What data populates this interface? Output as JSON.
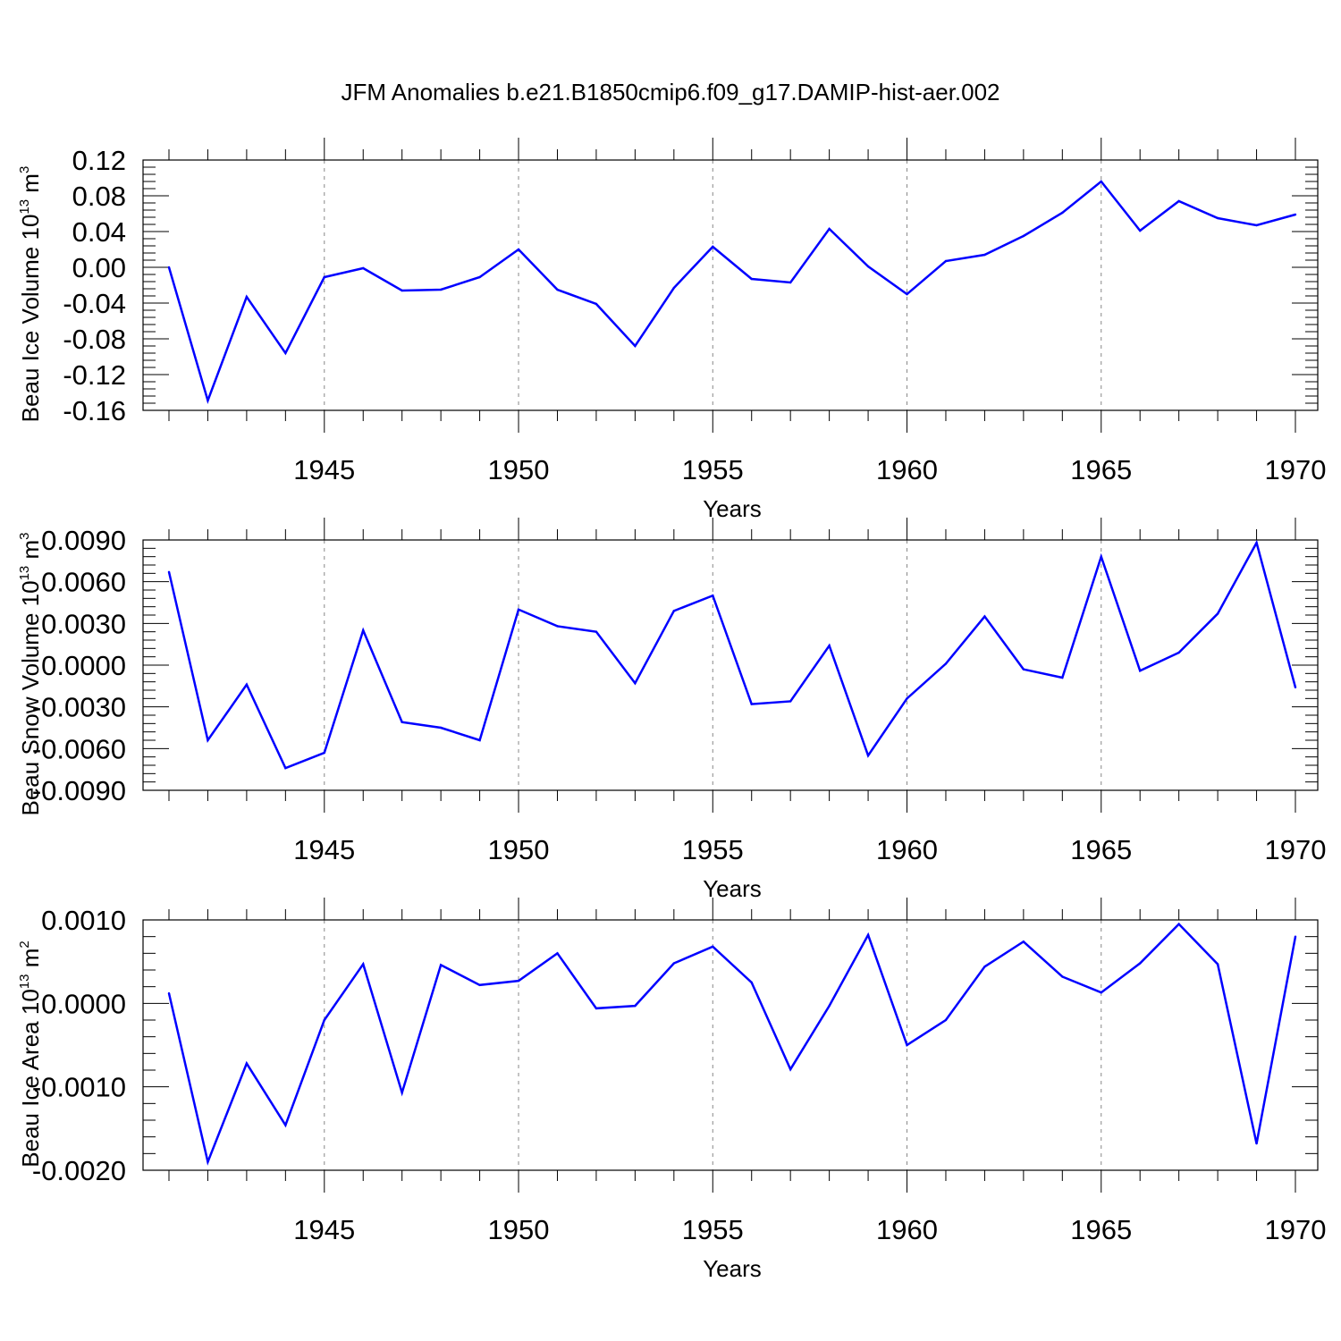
{
  "title": "JFM Anomalies b.e21.B1850cmip6.f09_g17.DAMIP-hist-aer.002",
  "colors": {
    "line": "#0000ff",
    "axis": "#000000",
    "grid": "#888888"
  },
  "chart_data": [
    {
      "type": "line",
      "title": "JFM Anomalies b.e21.B1850cmip6.f09_g17.DAMIP-hist-aer.002",
      "xlabel": "Years",
      "ylabel": "Beau Ice Volume 10",
      "ylabel_exp": "13",
      "ylabel_unit": " m",
      "ylabel_unit_exp": "3",
      "xlim": [
        1941,
        1970
      ],
      "ylim": [
        -0.16,
        0.12
      ],
      "yticks": [
        0.12,
        0.08,
        0.04,
        0.0,
        -0.04,
        -0.08,
        -0.12,
        -0.16
      ],
      "ytick_labels": [
        "0.12",
        "0.08",
        "0.04",
        "0.00",
        "-0.04",
        "-0.08",
        "-0.12",
        "-0.16"
      ],
      "xticks": [
        1945,
        1950,
        1955,
        1960,
        1965,
        1970
      ],
      "xtick_labels": [
        "1945",
        "1950",
        "1955",
        "1960",
        "1965",
        "1970"
      ],
      "x": [
        1941,
        1942,
        1943,
        1944,
        1945,
        1946,
        1947,
        1948,
        1949,
        1950,
        1951,
        1952,
        1953,
        1954,
        1955,
        1956,
        1957,
        1958,
        1959,
        1960,
        1961,
        1962,
        1963,
        1964,
        1965,
        1966,
        1967,
        1968,
        1969,
        1970
      ],
      "values": [
        0.0,
        -0.149,
        -0.033,
        -0.096,
        -0.011,
        -0.001,
        -0.026,
        -0.025,
        -0.011,
        0.02,
        -0.025,
        -0.041,
        -0.088,
        -0.023,
        0.023,
        -0.013,
        -0.017,
        0.043,
        0.001,
        -0.03,
        0.007,
        0.014,
        0.035,
        0.061,
        0.096,
        0.041,
        0.074,
        0.055,
        0.047,
        0.059
      ]
    },
    {
      "type": "line",
      "xlabel": "Years",
      "ylabel": "Beau Snow Volume 10",
      "ylabel_exp": "13",
      "ylabel_unit": " m",
      "ylabel_unit_exp": "3",
      "xlim": [
        1941,
        1970
      ],
      "ylim": [
        -0.009,
        0.009
      ],
      "yticks": [
        0.009,
        0.006,
        0.003,
        0.0,
        -0.003,
        -0.006,
        -0.009
      ],
      "ytick_labels": [
        "0.0090",
        "0.0060",
        "0.0030",
        "0.0000",
        "-0.0030",
        "-0.0060",
        "-0.0090"
      ],
      "xticks": [
        1945,
        1950,
        1955,
        1960,
        1965,
        1970
      ],
      "xtick_labels": [
        "1945",
        "1950",
        "1955",
        "1960",
        "1965",
        "1970"
      ],
      "x": [
        1941,
        1942,
        1943,
        1944,
        1945,
        1946,
        1947,
        1948,
        1949,
        1950,
        1951,
        1952,
        1953,
        1954,
        1955,
        1956,
        1957,
        1958,
        1959,
        1960,
        1961,
        1962,
        1963,
        1964,
        1965,
        1966,
        1967,
        1968,
        1969,
        1970
      ],
      "values": [
        0.0067,
        -0.0054,
        -0.0014,
        -0.0074,
        -0.0063,
        0.0025,
        -0.0041,
        -0.0045,
        -0.0054,
        0.004,
        0.0028,
        0.0024,
        -0.0013,
        0.0039,
        0.005,
        -0.0028,
        -0.0026,
        0.0014,
        -0.0065,
        -0.0024,
        0.0001,
        0.0035,
        -0.0003,
        -0.0009,
        0.0078,
        -0.0004,
        0.0009,
        0.0037,
        0.0088,
        -0.0016
      ]
    },
    {
      "type": "line",
      "xlabel": "Years",
      "ylabel": "Beau Ice Area 10",
      "ylabel_exp": "13",
      "ylabel_unit": " m",
      "ylabel_unit_exp": "2",
      "xlim": [
        1941,
        1970
      ],
      "ylim": [
        -0.002,
        0.001
      ],
      "yticks": [
        0.001,
        0.0,
        -0.001,
        -0.002
      ],
      "ytick_labels": [
        "0.0010",
        "0.0000",
        "-0.0010",
        "-0.0020"
      ],
      "xticks": [
        1945,
        1950,
        1955,
        1960,
        1965,
        1970
      ],
      "xtick_labels": [
        "1945",
        "1950",
        "1955",
        "1960",
        "1965",
        "1970"
      ],
      "x": [
        1941,
        1942,
        1943,
        1944,
        1945,
        1946,
        1947,
        1948,
        1949,
        1950,
        1951,
        1952,
        1953,
        1954,
        1955,
        1956,
        1957,
        1958,
        1959,
        1960,
        1961,
        1962,
        1963,
        1964,
        1965,
        1966,
        1967,
        1968,
        1969,
        1970
      ],
      "values": [
        0.00012,
        -0.0019,
        -0.00072,
        -0.00146,
        -0.0002,
        0.00047,
        -0.00107,
        0.00046,
        0.00022,
        0.00027,
        0.0006,
        -6e-05,
        -3e-05,
        0.00048,
        0.00068,
        0.00025,
        -0.00079,
        -3e-05,
        0.00082,
        -0.0005,
        -0.0002,
        0.00044,
        0.00074,
        0.00032,
        0.00013,
        0.00048,
        0.00095,
        0.00047,
        -0.00168,
        0.0008
      ]
    }
  ]
}
